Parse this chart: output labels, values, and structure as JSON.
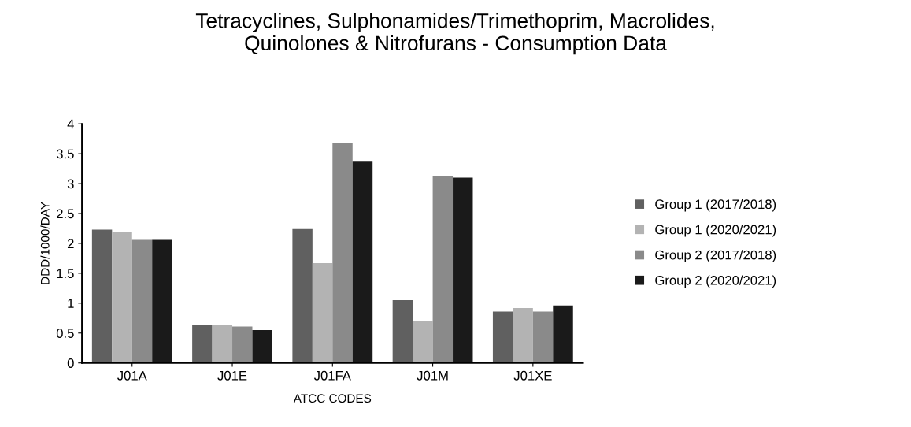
{
  "chart_data": {
    "type": "bar",
    "title": "Tetracyclines, Sulphonamides/Trimethoprim, Macrolides,\nQuinolones & Nitrofurans - Consumption Data",
    "xlabel": "ATCC CODES",
    "ylabel": "DDD/1000/DAY",
    "categories": [
      "J01A",
      "J01E",
      "J01FA",
      "J01M",
      "J01XE"
    ],
    "series": [
      {
        "name": "Group 1 (2017/2018)",
        "color": "#606060",
        "values": [
          2.23,
          0.64,
          2.24,
          1.05,
          0.86
        ]
      },
      {
        "name": "Group 1 (2020/2021)",
        "color": "#b3b3b3",
        "values": [
          2.19,
          0.64,
          1.67,
          0.7,
          0.92
        ]
      },
      {
        "name": "Group 2 (2017/2018)",
        "color": "#8a8a8a",
        "values": [
          2.06,
          0.61,
          3.68,
          3.13,
          0.86
        ]
      },
      {
        "name": "Group 2 (2020/2021)",
        "color": "#1a1a1a",
        "values": [
          2.06,
          0.55,
          3.38,
          3.1,
          0.96
        ]
      }
    ],
    "ylim": [
      0,
      4
    ],
    "yticks": [
      0,
      0.5,
      1,
      1.5,
      2,
      2.5,
      3,
      3.5,
      4
    ],
    "grid": false,
    "legend": "right"
  }
}
